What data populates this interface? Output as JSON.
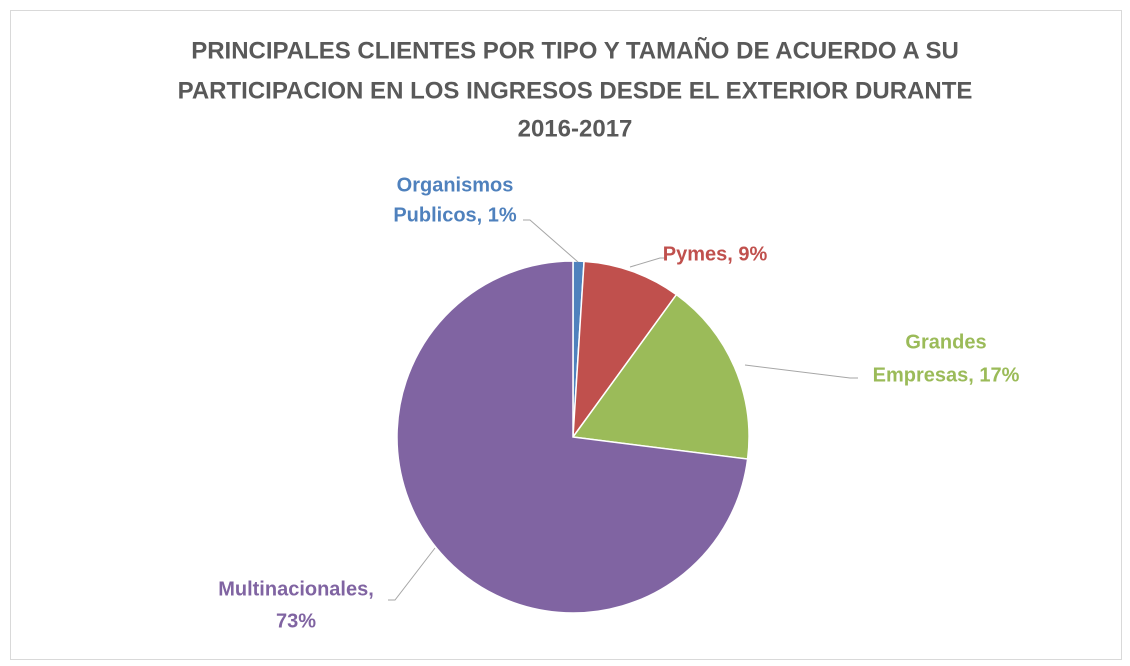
{
  "chart_data": {
    "type": "pie",
    "title": [
      "PRINCIPALES  CLIENTES POR TIPO Y TAMAÑO DE ACUERDO A SU",
      "PARTICIPACION EN LOS INGRESOS DESDE EL EXTERIOR DURANTE",
      "2016-2017"
    ],
    "values": [
      1,
      9,
      17,
      73
    ],
    "value_labels": [
      [
        "Organismos",
        "Publicos, 1%"
      ],
      [
        "Pymes, 9%"
      ],
      [
        "Grandes",
        "Empresas, 17%"
      ],
      [
        "Multinacionales,",
        "73%"
      ]
    ],
    "colors": [
      "#4f81bd",
      "#c0504d",
      "#9bbb59",
      "#8064a2"
    ]
  }
}
